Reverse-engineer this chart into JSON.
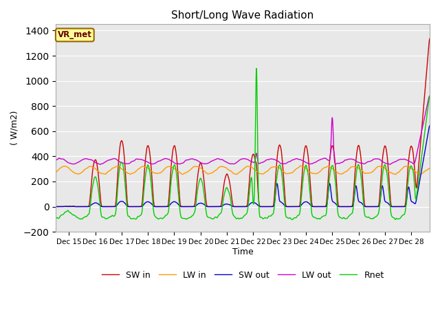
{
  "title": "Short/Long Wave Radiation",
  "xlabel": "Time",
  "ylabel": "( W/m2)",
  "ylim": [
    -200,
    1450
  ],
  "xlim_days": [
    14.0,
    28.2
  ],
  "label": "VR_met",
  "series_names": [
    "SW in",
    "LW in",
    "SW out",
    "LW out",
    "Rnet"
  ],
  "series_colors": [
    "#cc0000",
    "#ff9900",
    "#0000cc",
    "#cc00cc",
    "#00cc00"
  ],
  "background_color": "#e8e8e8",
  "xtick_positions": [
    14.5,
    15.5,
    16.5,
    17.5,
    18.5,
    19.5,
    20.5,
    21.5,
    22.5,
    23.5,
    24.5,
    25.5,
    26.5,
    27.5
  ],
  "xtick_labels": [
    "Dec 15",
    "Dec 16",
    "Dec 17",
    "Dec 18",
    "Dec 19",
    "Dec 20",
    "Dec 21",
    "Dec 22",
    "Dec 23",
    "Dec 24",
    "Dec 25",
    "Dec 26",
    "Dec 27",
    "Dec 28"
  ],
  "grid_color": "#ffffff"
}
